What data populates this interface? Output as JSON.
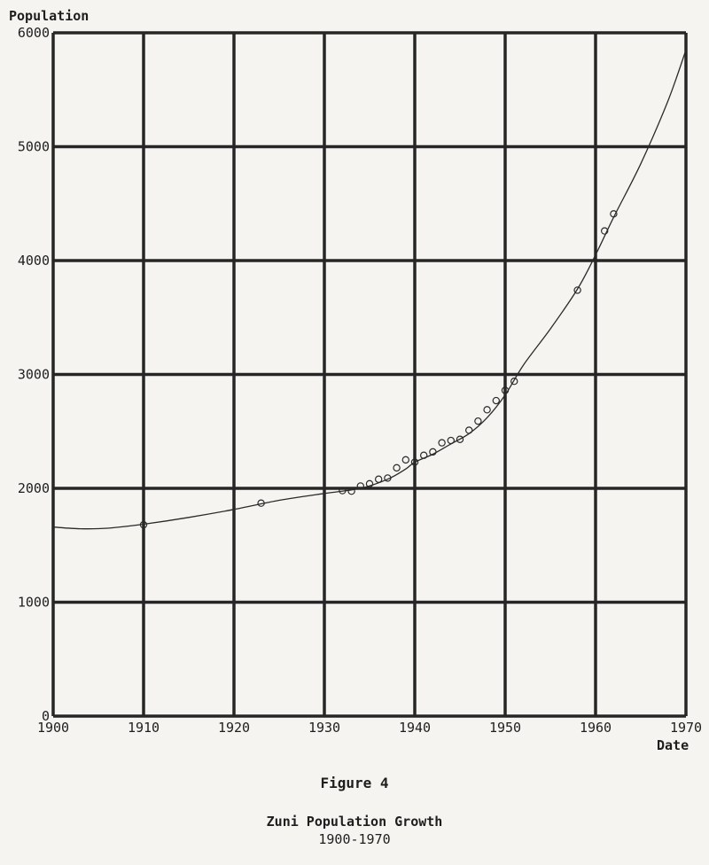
{
  "figure_label": "Figure 4",
  "chart_data": {
    "type": "line",
    "title": "Zuni Population Growth",
    "subtitle": "1900-1970",
    "xlabel": "Date",
    "ylabel": "Population",
    "xlim": [
      1900,
      1970
    ],
    "ylim": [
      0,
      6000
    ],
    "x_ticks": [
      1900,
      1910,
      1920,
      1930,
      1940,
      1950,
      1960,
      1970
    ],
    "y_ticks": [
      0,
      1000,
      2000,
      3000,
      4000,
      5000,
      6000
    ],
    "grid": true,
    "legend": "none",
    "series": [
      {
        "kind": "trend-curve",
        "points": [
          [
            1900,
            1660
          ],
          [
            1903,
            1645
          ],
          [
            1906,
            1650
          ],
          [
            1910,
            1685
          ],
          [
            1915,
            1745
          ],
          [
            1920,
            1815
          ],
          [
            1925,
            1895
          ],
          [
            1930,
            1955
          ],
          [
            1934,
            2000
          ],
          [
            1937,
            2080
          ],
          [
            1939,
            2170
          ],
          [
            1940,
            2230
          ],
          [
            1942,
            2300
          ],
          [
            1944,
            2390
          ],
          [
            1946,
            2480
          ],
          [
            1948,
            2620
          ],
          [
            1950,
            2820
          ],
          [
            1952,
            3080
          ],
          [
            1955,
            3400
          ],
          [
            1958,
            3750
          ],
          [
            1960,
            4050
          ],
          [
            1962,
            4380
          ],
          [
            1965,
            4850
          ],
          [
            1968,
            5400
          ],
          [
            1970,
            5850
          ]
        ]
      },
      {
        "kind": "observations",
        "points": [
          [
            1910,
            1680
          ],
          [
            1923,
            1870
          ],
          [
            1932,
            1980
          ],
          [
            1933,
            1975
          ],
          [
            1934,
            2020
          ],
          [
            1935,
            2040
          ],
          [
            1936,
            2080
          ],
          [
            1937,
            2090
          ],
          [
            1938,
            2180
          ],
          [
            1939,
            2250
          ],
          [
            1940,
            2230
          ],
          [
            1941,
            2290
          ],
          [
            1942,
            2320
          ],
          [
            1943,
            2400
          ],
          [
            1944,
            2420
          ],
          [
            1945,
            2430
          ],
          [
            1946,
            2510
          ],
          [
            1947,
            2590
          ],
          [
            1948,
            2690
          ],
          [
            1949,
            2770
          ],
          [
            1950,
            2860
          ],
          [
            1951,
            2940
          ],
          [
            1958,
            3740
          ],
          [
            1961,
            4260
          ],
          [
            1962,
            4410
          ]
        ]
      }
    ]
  }
}
